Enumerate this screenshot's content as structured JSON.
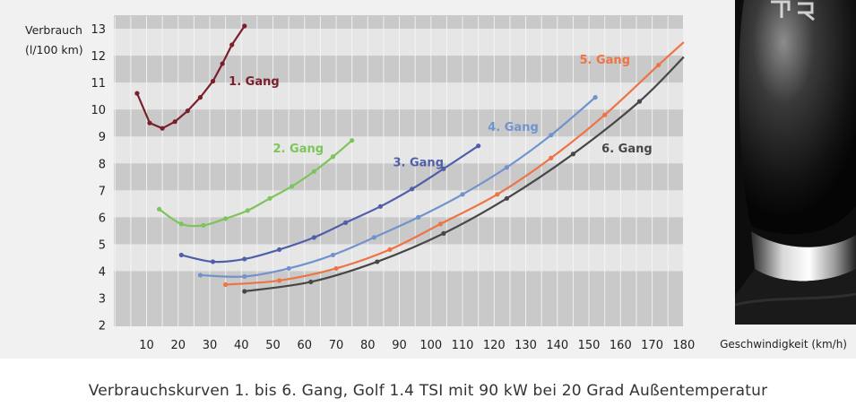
{
  "caption": "Verbrauchskurven 1. bis 6. Gang, Golf 1.4 TSI mit 90 kW bei 20 Grad Außentemperatur",
  "chart_data": {
    "type": "line",
    "ylabel": [
      "Verbrauch",
      "(l/100 km)"
    ],
    "xlabel": "Geschwindigkeit (km/h)",
    "xlim": [
      0,
      180
    ],
    "ylim": [
      2,
      13.5
    ],
    "xticks": [
      10,
      20,
      30,
      40,
      50,
      60,
      70,
      80,
      90,
      100,
      110,
      120,
      130,
      140,
      150,
      160,
      170,
      180
    ],
    "yticks": [
      2,
      3,
      4,
      5,
      6,
      7,
      8,
      9,
      10,
      11,
      12,
      13
    ],
    "background": "alternating grey horizontal bands with vertical gridlines",
    "series": [
      {
        "name": "1. Gang",
        "color": "#7a1f2b",
        "label_at": [
          36,
          10.9
        ],
        "points": [
          [
            7,
            10.6
          ],
          [
            11,
            9.5
          ],
          [
            15,
            9.3
          ],
          [
            19,
            9.55
          ],
          [
            23,
            9.95
          ],
          [
            27,
            10.45
          ],
          [
            31,
            11.05
          ],
          [
            34,
            11.7
          ],
          [
            37,
            12.4
          ],
          [
            41,
            13.1
          ]
        ]
      },
      {
        "name": "2. Gang",
        "color": "#7cc55a",
        "label_at": [
          50,
          8.4
        ],
        "points": [
          [
            14,
            6.3
          ],
          [
            21,
            5.75
          ],
          [
            28,
            5.7
          ],
          [
            35,
            5.95
          ],
          [
            42,
            6.25
          ],
          [
            49,
            6.7
          ],
          [
            56,
            7.15
          ],
          [
            63,
            7.7
          ],
          [
            69,
            8.25
          ],
          [
            75,
            8.85
          ]
        ]
      },
      {
        "name": "3. Gang",
        "color": "#4f5fa8",
        "label_at": [
          88,
          7.9
        ],
        "points": [
          [
            21,
            4.6
          ],
          [
            31,
            4.35
          ],
          [
            41,
            4.45
          ],
          [
            52,
            4.8
          ],
          [
            63,
            5.25
          ],
          [
            73,
            5.8
          ],
          [
            84,
            6.4
          ],
          [
            94,
            7.05
          ],
          [
            104,
            7.8
          ],
          [
            115,
            8.65
          ]
        ]
      },
      {
        "name": "4. Gang",
        "color": "#7193cc",
        "label_at": [
          118,
          9.2
        ],
        "points": [
          [
            27,
            3.85
          ],
          [
            41,
            3.8
          ],
          [
            55,
            4.1
          ],
          [
            69,
            4.6
          ],
          [
            82,
            5.25
          ],
          [
            96,
            6.0
          ],
          [
            110,
            6.85
          ],
          [
            124,
            7.85
          ],
          [
            138,
            9.05
          ],
          [
            152,
            10.45
          ]
        ]
      },
      {
        "name": "5. Gang",
        "color": "#ec7445",
        "label_at": [
          147,
          11.7
        ],
        "points": [
          [
            35,
            3.5
          ],
          [
            52,
            3.65
          ],
          [
            70,
            4.1
          ],
          [
            87,
            4.8
          ],
          [
            103,
            5.75
          ],
          [
            121,
            6.85
          ],
          [
            138,
            8.2
          ],
          [
            155,
            9.8
          ],
          [
            172,
            11.65
          ],
          [
            180,
            12.5
          ]
        ]
      },
      {
        "name": "6. Gang",
        "color": "#474747",
        "label_at": [
          154,
          8.4
        ],
        "points": [
          [
            41,
            3.25
          ],
          [
            62,
            3.6
          ],
          [
            83,
            4.35
          ],
          [
            104,
            5.4
          ],
          [
            124,
            6.7
          ],
          [
            145,
            8.35
          ],
          [
            166,
            10.3
          ],
          [
            180,
            11.95
          ]
        ]
      }
    ]
  }
}
